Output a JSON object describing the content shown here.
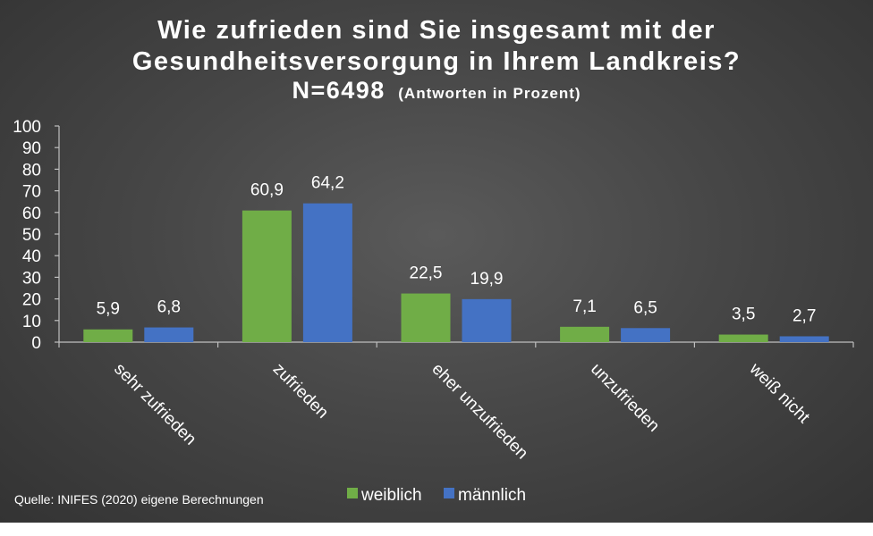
{
  "chart_data": {
    "type": "bar",
    "title_line1": "Wie zufrieden sind Sie insgesamt mit der",
    "title_line2": "Gesundheitsversorgung in Ihrem Landkreis?",
    "title_line3_main": "N=6498",
    "title_line3_note": "(Antworten in Prozent)",
    "categories": [
      "sehr zufrieden",
      "zufrieden",
      "eher unzufrieden",
      "unzufrieden",
      "weiß nicht"
    ],
    "series": [
      {
        "name": "weiblich",
        "color": "#70ad47",
        "values": [
          5.9,
          60.9,
          22.5,
          7.1,
          3.5
        ],
        "labels": [
          "5,9",
          "60,9",
          "22,5",
          "7,1",
          "3,5"
        ]
      },
      {
        "name": "männlich",
        "color": "#4472c4",
        "values": [
          6.8,
          64.2,
          19.9,
          6.5,
          2.7
        ],
        "labels": [
          "6,8",
          "64,2",
          "19,9",
          "6,5",
          "2,7"
        ]
      }
    ],
    "ylim": [
      0,
      100
    ],
    "yticks": [
      0,
      10,
      20,
      30,
      40,
      50,
      60,
      70,
      80,
      90,
      100
    ],
    "grid": false,
    "legend_position": "bottom",
    "xlabel": "",
    "ylabel": "",
    "source": "Quelle: INIFES (2020) eigene Berechnungen"
  }
}
